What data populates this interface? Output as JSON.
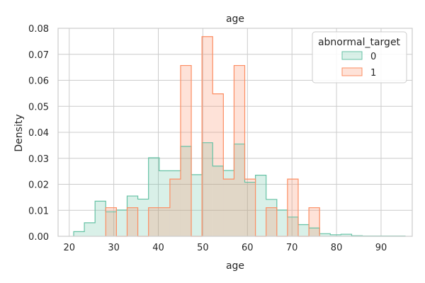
{
  "chart_data": {
    "type": "histogram",
    "title": "age",
    "xlabel": "age",
    "ylabel": "Density",
    "xlim": [
      17.5,
      97
    ],
    "ylim": [
      0,
      0.08
    ],
    "xticks": [
      "20",
      "30",
      "40",
      "50",
      "60",
      "70",
      "80",
      "90"
    ],
    "xtick_values": [
      20,
      30,
      40,
      50,
      60,
      70,
      80,
      90
    ],
    "yticks": [
      "0.00",
      "0.01",
      "0.02",
      "0.03",
      "0.04",
      "0.05",
      "0.06",
      "0.07",
      "0.08"
    ],
    "ytick_values": [
      0,
      0.01,
      0.02,
      0.03,
      0.04,
      0.05,
      0.06,
      0.07,
      0.08
    ],
    "grid": true,
    "legend": {
      "title": "abnormal_target",
      "placement": "top-right"
    },
    "series": [
      {
        "name": "0",
        "color": "#66c2a5",
        "fill": "rgba(102,194,165,0.25)",
        "bins": [
          [
            21,
            23.4,
            0.0018
          ],
          [
            23.4,
            25.8,
            0.0052
          ],
          [
            25.8,
            28.2,
            0.0135
          ],
          [
            28.2,
            30.6,
            0.0094
          ],
          [
            30.6,
            33.0,
            0.0101
          ],
          [
            33.0,
            35.4,
            0.0155
          ],
          [
            35.4,
            37.8,
            0.0143
          ],
          [
            37.8,
            40.2,
            0.0302
          ],
          [
            40.2,
            42.6,
            0.0252
          ],
          [
            42.6,
            45.0,
            0.0252
          ],
          [
            45.0,
            47.4,
            0.0346
          ],
          [
            47.4,
            49.8,
            0.0237
          ],
          [
            49.8,
            52.2,
            0.036
          ],
          [
            52.2,
            54.6,
            0.027
          ],
          [
            54.6,
            57.0,
            0.0253
          ],
          [
            57.0,
            59.4,
            0.0355
          ],
          [
            59.4,
            61.8,
            0.0208
          ],
          [
            61.8,
            64.2,
            0.0235
          ],
          [
            64.2,
            66.6,
            0.0142
          ],
          [
            66.6,
            69.0,
            0.0101
          ],
          [
            69.0,
            71.4,
            0.0074
          ],
          [
            71.4,
            73.8,
            0.0045
          ],
          [
            73.8,
            76.2,
            0.0032
          ],
          [
            76.2,
            78.6,
            0.001
          ],
          [
            78.6,
            81.0,
            0.0006
          ],
          [
            81.0,
            83.4,
            0.0008
          ],
          [
            83.4,
            85.8,
            0.0002
          ],
          [
            85.8,
            88.2,
            0.0001
          ],
          [
            88.2,
            90.6,
            0.0001
          ],
          [
            90.6,
            93.0,
            0.0001
          ],
          [
            93.0,
            95.4,
            0.0001
          ]
        ]
      },
      {
        "name": "1",
        "color": "#fc8d62",
        "fill": "rgba(252,141,98,0.25)",
        "bins": [
          [
            28.2,
            30.6,
            0.011
          ],
          [
            30.6,
            33.0,
            0.0
          ],
          [
            33.0,
            35.4,
            0.011
          ],
          [
            35.4,
            37.8,
            0.0
          ],
          [
            37.8,
            40.2,
            0.011
          ],
          [
            40.2,
            42.6,
            0.011
          ],
          [
            42.6,
            45.0,
            0.022
          ],
          [
            45.0,
            47.4,
            0.0657
          ],
          [
            47.4,
            49.8,
            0.0
          ],
          [
            49.8,
            52.2,
            0.0768
          ],
          [
            52.2,
            54.6,
            0.0548
          ],
          [
            54.6,
            57.0,
            0.022
          ],
          [
            57.0,
            59.4,
            0.0657
          ],
          [
            59.4,
            61.8,
            0.022
          ],
          [
            61.8,
            64.2,
            0.0
          ],
          [
            64.2,
            66.6,
            0.011
          ],
          [
            66.6,
            69.0,
            0.0
          ],
          [
            69.0,
            71.4,
            0.022
          ],
          [
            71.4,
            73.8,
            0.0
          ],
          [
            73.8,
            76.2,
            0.011
          ]
        ]
      }
    ]
  }
}
